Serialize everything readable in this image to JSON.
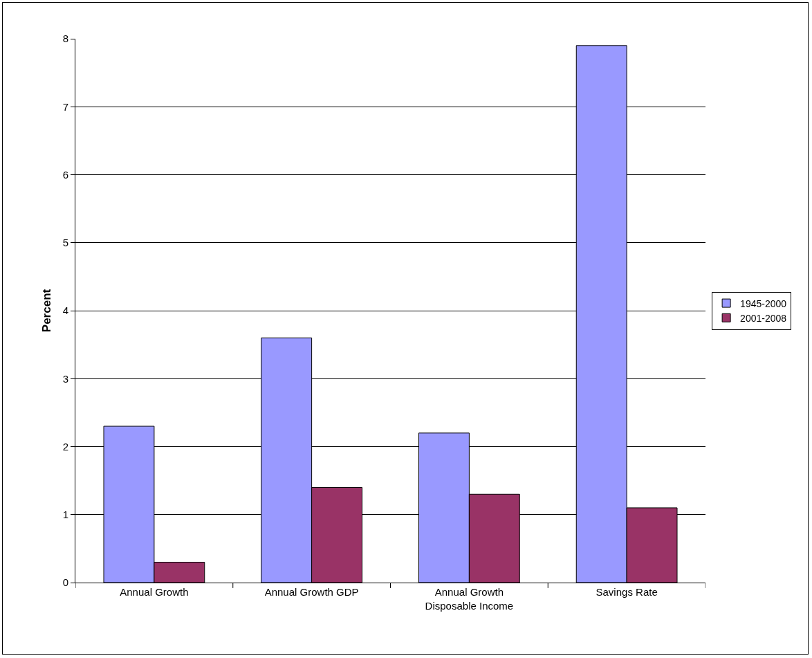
{
  "chart_data": {
    "type": "bar",
    "ylabel": "Percent",
    "categories": [
      "Annual Growth",
      "Annual Growth GDP",
      "Annual Growth\nDisposable Income",
      "Savings Rate"
    ],
    "series": [
      {
        "name": "1945-2000",
        "color": "#9999ff",
        "values": [
          2.3,
          3.6,
          2.2,
          7.9
        ]
      },
      {
        "name": "2001-2008",
        "color": "#993366",
        "values": [
          0.3,
          1.4,
          1.3,
          1.1
        ]
      }
    ],
    "ylim": [
      0,
      8
    ],
    "yticks": [
      0,
      1,
      2,
      3,
      4,
      5,
      6,
      7,
      8
    ],
    "grid": "y",
    "legend": "right"
  }
}
